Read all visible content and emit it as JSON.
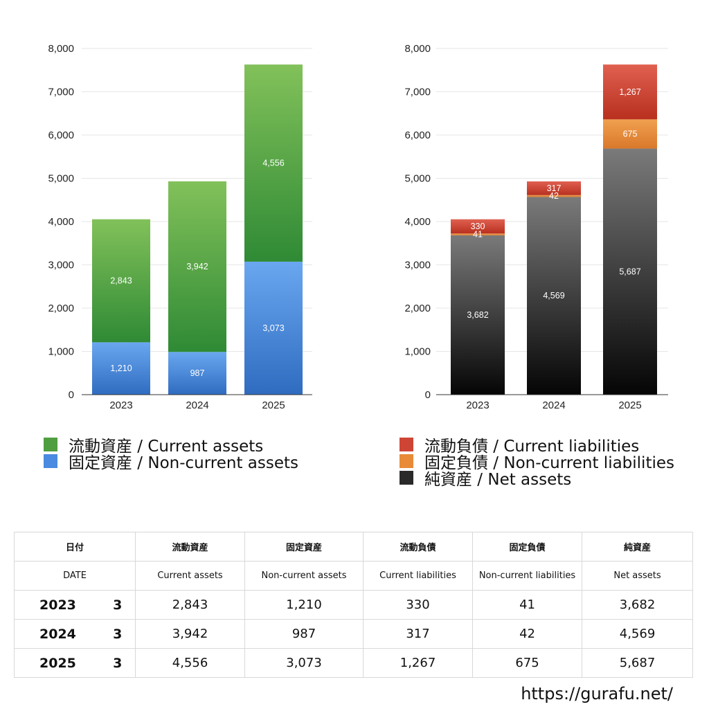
{
  "chart_data": [
    {
      "type": "bar",
      "stacked": true,
      "categories": [
        "2023",
        "2024",
        "2025"
      ],
      "ylim": [
        0,
        8000
      ],
      "yticks": [
        "0",
        "1,000",
        "2,000",
        "3,000",
        "4,000",
        "5,000",
        "6,000",
        "7,000",
        "8,000"
      ],
      "grid": true,
      "legend_position": "bottom",
      "series": [
        {
          "name": "固定資産 / Non-current assets",
          "values": [
            1210,
            987,
            3073
          ],
          "labels": [
            "1,210",
            "987",
            "3,073"
          ],
          "color_top": "#6aa7f0",
          "color_bottom": "#2f6cc0"
        },
        {
          "name": "流動資産 / Current assets",
          "values": [
            2843,
            3942,
            4556
          ],
          "labels": [
            "2,843",
            "3,942",
            "4,556"
          ],
          "color_top": "#82c15a",
          "color_bottom": "#2f8a35"
        }
      ]
    },
    {
      "type": "bar",
      "stacked": true,
      "categories": [
        "2023",
        "2024",
        "2025"
      ],
      "ylim": [
        0,
        8000
      ],
      "yticks": [
        "0",
        "1,000",
        "2,000",
        "3,000",
        "4,000",
        "5,000",
        "6,000",
        "7,000",
        "8,000"
      ],
      "grid": true,
      "legend_position": "bottom",
      "series": [
        {
          "name": "純資産 / Net assets",
          "values": [
            3682,
            4569,
            5687
          ],
          "labels": [
            "3,682",
            "4,569",
            "5,687"
          ],
          "color_top": "#7a7a7a",
          "color_bottom": "#050505"
        },
        {
          "name": "固定負債 / Non-current liabilities",
          "values": [
            41,
            42,
            675
          ],
          "labels": [
            "41",
            "42",
            "675"
          ],
          "color_top": "#f0a050",
          "color_bottom": "#d9782a"
        },
        {
          "name": "流動負債 / Current liabilities",
          "values": [
            330,
            317,
            1267
          ],
          "labels": [
            "330",
            "317",
            "1,267"
          ],
          "color_top": "#e06050",
          "color_bottom": "#b8301f"
        }
      ]
    }
  ],
  "legend_left": [
    {
      "label": "流動資産 / Current assets",
      "color": "#4f9e3f"
    },
    {
      "label": "固定資産 / Non-current assets",
      "color": "#4a8ae0"
    }
  ],
  "legend_right": [
    {
      "label": "流動負債 / Current liabilities",
      "color": "#cf4535"
    },
    {
      "label": "固定負債 / Non-current liabilities",
      "color": "#e88a38"
    },
    {
      "label": "純資産 / Net assets",
      "color": "#2a2a2a"
    }
  ],
  "table": {
    "header_jp": [
      "日付",
      "流動資産",
      "固定資産",
      "流動負債",
      "固定負債",
      "純資産"
    ],
    "header_en": [
      "DATE",
      "Current assets",
      "Non-current assets",
      "Current liabilities",
      "Non-current liabilities",
      "Net assets"
    ],
    "rows": [
      {
        "year": "2023",
        "month": "3",
        "cells": [
          "2,843",
          "1,210",
          "330",
          "41",
          "3,682"
        ]
      },
      {
        "year": "2024",
        "month": "3",
        "cells": [
          "3,942",
          "987",
          "317",
          "42",
          "4,569"
        ]
      },
      {
        "year": "2025",
        "month": "3",
        "cells": [
          "4,556",
          "3,073",
          "1,267",
          "675",
          "5,687"
        ]
      }
    ]
  },
  "footer": {
    "url": "https://gurafu.net/"
  }
}
